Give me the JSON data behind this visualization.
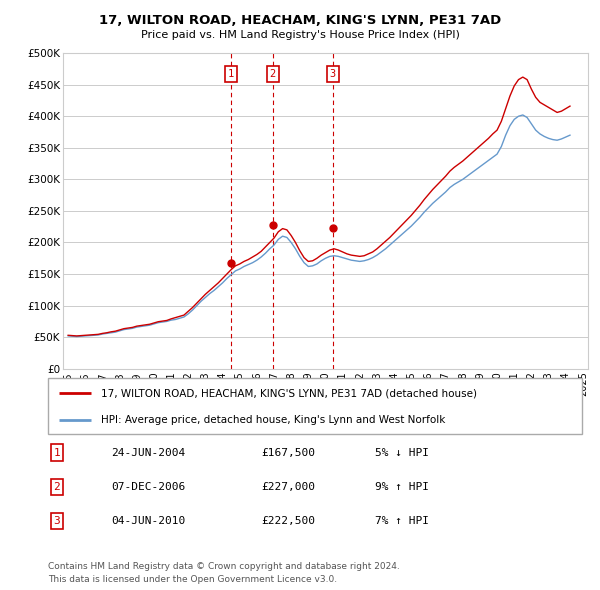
{
  "title1": "17, WILTON ROAD, HEACHAM, KING'S LYNN, PE31 7AD",
  "title2": "Price paid vs. HM Land Registry's House Price Index (HPI)",
  "background_color": "#ffffff",
  "plot_bg_color": "#ffffff",
  "grid_color": "#cccccc",
  "line1_color": "#cc0000",
  "line2_color": "#6699cc",
  "sale_color": "#cc0000",
  "ylim": [
    0,
    500000
  ],
  "yticks": [
    0,
    50000,
    100000,
    150000,
    200000,
    250000,
    300000,
    350000,
    400000,
    450000,
    500000
  ],
  "ytick_labels": [
    "£0",
    "£50K",
    "£100K",
    "£150K",
    "£200K",
    "£250K",
    "£300K",
    "£350K",
    "£400K",
    "£450K",
    "£500K"
  ],
  "sale_dates_num": [
    2004.48,
    2006.93,
    2010.43
  ],
  "sale_prices": [
    167500,
    227000,
    222500
  ],
  "sale_labels": [
    "1",
    "2",
    "3"
  ],
  "legend_line1": "17, WILTON ROAD, HEACHAM, KING'S LYNN, PE31 7AD (detached house)",
  "legend_line2": "HPI: Average price, detached house, King's Lynn and West Norfolk",
  "table_data": [
    [
      "1",
      "24-JUN-2004",
      "£167,500",
      "5% ↓ HPI"
    ],
    [
      "2",
      "07-DEC-2006",
      "£227,000",
      "9% ↑ HPI"
    ],
    [
      "3",
      "04-JUN-2010",
      "£222,500",
      "7% ↑ HPI"
    ]
  ],
  "footnote1": "Contains HM Land Registry data © Crown copyright and database right 2024.",
  "footnote2": "This data is licensed under the Open Government Licence v3.0.",
  "hpi_years": [
    1995,
    1995.25,
    1995.5,
    1995.75,
    1996,
    1996.25,
    1996.5,
    1996.75,
    1997,
    1997.25,
    1997.5,
    1997.75,
    1998,
    1998.25,
    1998.5,
    1998.75,
    1999,
    1999.25,
    1999.5,
    1999.75,
    2000,
    2000.25,
    2000.5,
    2000.75,
    2001,
    2001.25,
    2001.5,
    2001.75,
    2002,
    2002.25,
    2002.5,
    2002.75,
    2003,
    2003.25,
    2003.5,
    2003.75,
    2004,
    2004.25,
    2004.5,
    2004.75,
    2005,
    2005.25,
    2005.5,
    2005.75,
    2006,
    2006.25,
    2006.5,
    2006.75,
    2007,
    2007.25,
    2007.5,
    2007.75,
    2008,
    2008.25,
    2008.5,
    2008.75,
    2009,
    2009.25,
    2009.5,
    2009.75,
    2010,
    2010.25,
    2010.5,
    2010.75,
    2011,
    2011.25,
    2011.5,
    2011.75,
    2012,
    2012.25,
    2012.5,
    2012.75,
    2013,
    2013.25,
    2013.5,
    2013.75,
    2014,
    2014.25,
    2014.5,
    2014.75,
    2015,
    2015.25,
    2015.5,
    2015.75,
    2016,
    2016.25,
    2016.5,
    2016.75,
    2017,
    2017.25,
    2017.5,
    2017.75,
    2018,
    2018.25,
    2018.5,
    2018.75,
    2019,
    2019.25,
    2019.5,
    2019.75,
    2020,
    2020.25,
    2020.5,
    2020.75,
    2021,
    2021.25,
    2021.5,
    2021.75,
    2022,
    2022.25,
    2022.5,
    2022.75,
    2023,
    2023.25,
    2023.5,
    2023.75,
    2024,
    2024.25
  ],
  "hpi_values": [
    52000,
    51500,
    51000,
    51500,
    52000,
    52500,
    53000,
    53500,
    55000,
    56000,
    57000,
    58000,
    60000,
    62000,
    63000,
    64000,
    66000,
    67000,
    68000,
    69000,
    71000,
    73000,
    74000,
    75000,
    77000,
    78000,
    80000,
    82000,
    87000,
    93000,
    100000,
    107000,
    113000,
    119000,
    124000,
    130000,
    136000,
    143000,
    149000,
    155000,
    158000,
    162000,
    165000,
    168000,
    172000,
    177000,
    183000,
    190000,
    196000,
    205000,
    210000,
    208000,
    200000,
    190000,
    178000,
    168000,
    162000,
    163000,
    166000,
    171000,
    175000,
    178000,
    179000,
    178000,
    176000,
    174000,
    172000,
    171000,
    170000,
    171000,
    173000,
    176000,
    180000,
    185000,
    190000,
    196000,
    202000,
    208000,
    214000,
    220000,
    226000,
    233000,
    240000,
    248000,
    255000,
    262000,
    268000,
    274000,
    280000,
    287000,
    292000,
    296000,
    300000,
    305000,
    310000,
    315000,
    320000,
    325000,
    330000,
    335000,
    340000,
    352000,
    370000,
    385000,
    395000,
    400000,
    402000,
    398000,
    388000,
    378000,
    372000,
    368000,
    365000,
    363000,
    362000,
    364000,
    367000,
    370000
  ],
  "red_line_values": [
    53000,
    52500,
    52000,
    52500,
    53000,
    53500,
    54000,
    54500,
    56000,
    57000,
    58500,
    59500,
    61500,
    63500,
    64500,
    65500,
    67500,
    68500,
    69500,
    70500,
    72500,
    74500,
    75500,
    76500,
    79000,
    81000,
    83000,
    85000,
    91000,
    97000,
    104000,
    111000,
    118000,
    124000,
    130000,
    136000,
    143000,
    150000,
    157000,
    163000,
    166000,
    170000,
    173000,
    177000,
    181000,
    186000,
    193000,
    200000,
    207000,
    217000,
    222000,
    220000,
    211000,
    200000,
    187000,
    176000,
    170000,
    171000,
    175000,
    180000,
    184000,
    188000,
    190000,
    188000,
    185000,
    182000,
    180000,
    179000,
    178000,
    179000,
    182000,
    185000,
    190000,
    196000,
    202000,
    208000,
    215000,
    222000,
    229000,
    236000,
    243000,
    251000,
    259000,
    268000,
    276000,
    284000,
    291000,
    298000,
    305000,
    313000,
    319000,
    324000,
    329000,
    335000,
    341000,
    347000,
    353000,
    359000,
    365000,
    372000,
    378000,
    392000,
    412000,
    432000,
    448000,
    458000,
    462000,
    458000,
    443000,
    430000,
    422000,
    418000,
    414000,
    410000,
    406000,
    408000,
    412000,
    416000
  ]
}
